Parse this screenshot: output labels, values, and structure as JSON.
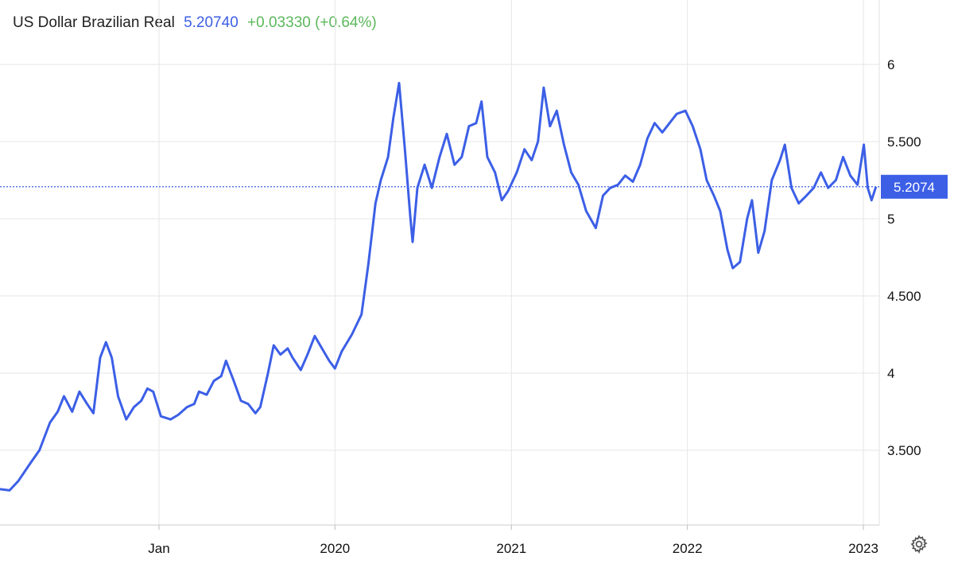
{
  "header": {
    "title": "US Dollar Brazilian Real",
    "price": "5.20740",
    "change": "+0.03330 (+0.64%)"
  },
  "colors": {
    "line": "#3c5fe6",
    "grid": "#e6e6e6",
    "change_up": "#5cb85c",
    "text": "#222222"
  },
  "settings_icon": "gear-icon",
  "chart_data": {
    "type": "line",
    "title": "US Dollar Brazilian Real",
    "xlabel": "",
    "ylabel": "",
    "ylim": [
      3.1,
      6.3
    ],
    "grid": true,
    "x_ticks": [
      {
        "label": "Jan",
        "x": "2019-01-01"
      },
      {
        "label": "2020",
        "x": "2020-01-01"
      },
      {
        "label": "2021",
        "x": "2021-01-01"
      },
      {
        "label": "2022",
        "x": "2022-01-01"
      },
      {
        "label": "2023",
        "x": "2023-01-01"
      }
    ],
    "y_ticks": [
      {
        "label": "3.500",
        "value": 3.5
      },
      {
        "label": "4",
        "value": 4.0
      },
      {
        "label": "4.500",
        "value": 4.5
      },
      {
        "label": "5",
        "value": 5.0
      },
      {
        "label": "5.500",
        "value": 5.5
      },
      {
        "label": "6",
        "value": 6.0
      }
    ],
    "last_value": 5.2074,
    "last_label": "5.2074",
    "series": [
      {
        "points": [
          [
            "2018-02-01",
            3.25
          ],
          [
            "2018-02-25",
            3.24
          ],
          [
            "2018-03-15",
            3.3
          ],
          [
            "2018-04-10",
            3.42
          ],
          [
            "2018-04-28",
            3.5
          ],
          [
            "2018-05-20",
            3.68
          ],
          [
            "2018-06-05",
            3.75
          ],
          [
            "2018-06-18",
            3.85
          ],
          [
            "2018-07-05",
            3.75
          ],
          [
            "2018-07-20",
            3.88
          ],
          [
            "2018-08-05",
            3.8
          ],
          [
            "2018-08-18",
            3.74
          ],
          [
            "2018-09-01",
            4.1
          ],
          [
            "2018-09-13",
            4.2
          ],
          [
            "2018-09-25",
            4.1
          ],
          [
            "2018-10-08",
            3.85
          ],
          [
            "2018-10-25",
            3.7
          ],
          [
            "2018-11-10",
            3.78
          ],
          [
            "2018-11-25",
            3.82
          ],
          [
            "2018-12-08",
            3.9
          ],
          [
            "2018-12-20",
            3.88
          ],
          [
            "2019-01-05",
            3.72
          ],
          [
            "2019-01-25",
            3.7
          ],
          [
            "2019-02-10",
            3.73
          ],
          [
            "2019-02-28",
            3.78
          ],
          [
            "2019-03-15",
            3.8
          ],
          [
            "2019-03-25",
            3.88
          ],
          [
            "2019-04-10",
            3.86
          ],
          [
            "2019-04-25",
            3.95
          ],
          [
            "2019-05-10",
            3.98
          ],
          [
            "2019-05-20",
            4.08
          ],
          [
            "2019-06-05",
            3.95
          ],
          [
            "2019-06-20",
            3.82
          ],
          [
            "2019-07-05",
            3.8
          ],
          [
            "2019-07-20",
            3.74
          ],
          [
            "2019-07-30",
            3.78
          ],
          [
            "2019-08-15",
            4.0
          ],
          [
            "2019-08-27",
            4.18
          ],
          [
            "2019-09-10",
            4.12
          ],
          [
            "2019-09-25",
            4.16
          ],
          [
            "2019-10-05",
            4.1
          ],
          [
            "2019-10-22",
            4.02
          ],
          [
            "2019-11-05",
            4.12
          ],
          [
            "2019-11-20",
            4.24
          ],
          [
            "2019-12-05",
            4.16
          ],
          [
            "2019-12-20",
            4.08
          ],
          [
            "2020-01-01",
            4.03
          ],
          [
            "2020-01-15",
            4.14
          ],
          [
            "2020-02-05",
            4.25
          ],
          [
            "2020-02-25",
            4.38
          ],
          [
            "2020-03-10",
            4.7
          ],
          [
            "2020-03-25",
            5.1
          ],
          [
            "2020-04-05",
            5.25
          ],
          [
            "2020-04-20",
            5.4
          ],
          [
            "2020-05-01",
            5.65
          ],
          [
            "2020-05-13",
            5.88
          ],
          [
            "2020-05-25",
            5.45
          ],
          [
            "2020-06-05",
            5.02
          ],
          [
            "2020-06-10",
            4.85
          ],
          [
            "2020-06-20",
            5.2
          ],
          [
            "2020-07-05",
            5.35
          ],
          [
            "2020-07-20",
            5.2
          ],
          [
            "2020-08-05",
            5.4
          ],
          [
            "2020-08-20",
            5.55
          ],
          [
            "2020-09-05",
            5.35
          ],
          [
            "2020-09-20",
            5.4
          ],
          [
            "2020-10-05",
            5.6
          ],
          [
            "2020-10-20",
            5.62
          ],
          [
            "2020-10-31",
            5.76
          ],
          [
            "2020-11-12",
            5.4
          ],
          [
            "2020-11-28",
            5.3
          ],
          [
            "2020-12-12",
            5.12
          ],
          [
            "2020-12-25",
            5.18
          ],
          [
            "2021-01-12",
            5.3
          ],
          [
            "2021-01-28",
            5.45
          ],
          [
            "2021-02-12",
            5.38
          ],
          [
            "2021-02-25",
            5.5
          ],
          [
            "2021-03-09",
            5.85
          ],
          [
            "2021-03-22",
            5.6
          ],
          [
            "2021-04-05",
            5.7
          ],
          [
            "2021-04-20",
            5.48
          ],
          [
            "2021-05-05",
            5.3
          ],
          [
            "2021-05-20",
            5.22
          ],
          [
            "2021-06-05",
            5.05
          ],
          [
            "2021-06-25",
            4.94
          ],
          [
            "2021-07-10",
            5.15
          ],
          [
            "2021-07-25",
            5.2
          ],
          [
            "2021-08-10",
            5.22
          ],
          [
            "2021-08-25",
            5.28
          ],
          [
            "2021-09-10",
            5.24
          ],
          [
            "2021-09-25",
            5.35
          ],
          [
            "2021-10-10",
            5.52
          ],
          [
            "2021-10-25",
            5.62
          ],
          [
            "2021-11-10",
            5.56
          ],
          [
            "2021-11-25",
            5.62
          ],
          [
            "2021-12-10",
            5.68
          ],
          [
            "2021-12-28",
            5.7
          ],
          [
            "2022-01-12",
            5.6
          ],
          [
            "2022-01-28",
            5.45
          ],
          [
            "2022-02-10",
            5.25
          ],
          [
            "2022-02-25",
            5.15
          ],
          [
            "2022-03-10",
            5.05
          ],
          [
            "2022-03-25",
            4.8
          ],
          [
            "2022-04-05",
            4.68
          ],
          [
            "2022-04-20",
            4.72
          ],
          [
            "2022-05-05",
            5.0
          ],
          [
            "2022-05-15",
            5.12
          ],
          [
            "2022-05-28",
            4.78
          ],
          [
            "2022-06-10",
            4.92
          ],
          [
            "2022-06-25",
            5.25
          ],
          [
            "2022-07-12",
            5.38
          ],
          [
            "2022-07-22",
            5.48
          ],
          [
            "2022-08-05",
            5.2
          ],
          [
            "2022-08-20",
            5.1
          ],
          [
            "2022-09-05",
            5.15
          ],
          [
            "2022-09-20",
            5.2
          ],
          [
            "2022-10-05",
            5.3
          ],
          [
            "2022-10-20",
            5.2
          ],
          [
            "2022-11-05",
            5.25
          ],
          [
            "2022-11-20",
            5.4
          ],
          [
            "2022-12-05",
            5.28
          ],
          [
            "2022-12-20",
            5.22
          ],
          [
            "2023-01-02",
            5.48
          ],
          [
            "2023-01-10",
            5.2
          ],
          [
            "2023-01-18",
            5.12
          ],
          [
            "2023-01-27",
            5.2074
          ]
        ]
      }
    ]
  }
}
